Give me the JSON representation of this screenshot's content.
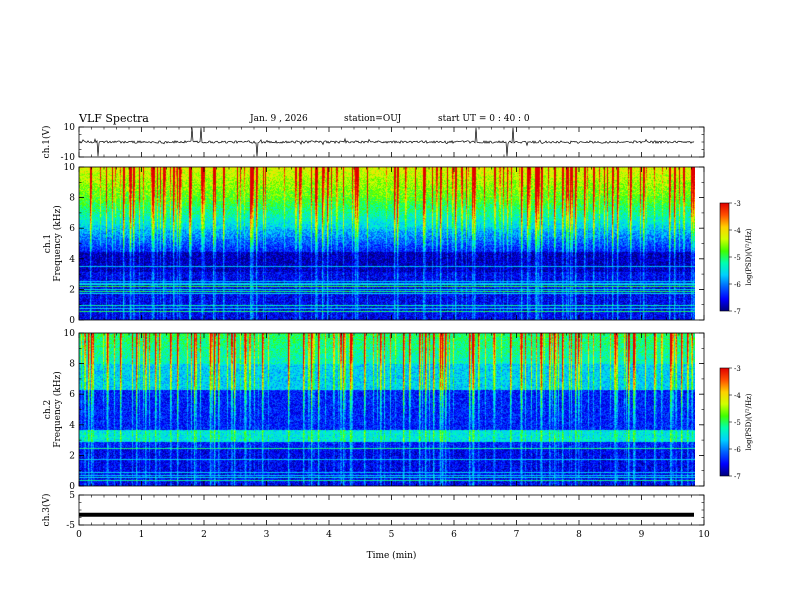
{
  "header": {
    "title": "VLF Spectra",
    "date": "Jan. 9 , 2026",
    "station": "station=OUJ",
    "start": "start UT = 0 : 40 : 0"
  },
  "colors": {
    "spectrum_scale": [
      "#00007a",
      "#0000ff",
      "#0060ff",
      "#00d0ff",
      "#00ffb0",
      "#40ff00",
      "#d0ff00",
      "#ffd000",
      "#ff5000",
      "#e00000",
      "#ffffff"
    ]
  },
  "chart_data": [
    {
      "type": "line",
      "panel": "ch.1(V)",
      "ylabel": "ch.1(V)",
      "ylim": [
        -10,
        10
      ],
      "y_ticks": [
        "10",
        "-10"
      ],
      "baseline": 0,
      "spikes_min": [
        0.3,
        1.8,
        1.95,
        2.85,
        6.35,
        6.85,
        6.95
      ]
    },
    {
      "type": "heatmap",
      "panel": "ch.1 spectrogram",
      "ylabel": "ch.1 Frequency (kHz)",
      "ylim": [
        0,
        10
      ],
      "y_ticks": [
        "0",
        "2",
        "4",
        "6",
        "8",
        "10"
      ],
      "colorbar": {
        "label": "log(PSD)(V²/Hz)",
        "range": [
          -7,
          -3
        ],
        "ticks": [
          "-3",
          "-4",
          "-5",
          "-6",
          "-7"
        ]
      }
    },
    {
      "type": "heatmap",
      "panel": "ch.2 spectrogram",
      "ylabel": "ch.2 Frequency (kHz)",
      "ylim": [
        0,
        10
      ],
      "y_ticks": [
        "0",
        "2",
        "4",
        "6",
        "8",
        "10"
      ],
      "colorbar": {
        "label": "log(PSD)(V²/Hz)",
        "range": [
          -7,
          -3
        ],
        "ticks": [
          "-3",
          "-4",
          "-5",
          "-6",
          "-7"
        ]
      }
    },
    {
      "type": "line",
      "panel": "ch.3(V)",
      "ylabel": "ch.3(V)",
      "ylim": [
        -5,
        5
      ],
      "y_ticks": [
        "5",
        "-5"
      ],
      "constant_value": -1.6
    }
  ],
  "xaxis": {
    "label": "Time (min)",
    "xlim": [
      0,
      10
    ],
    "ticks": [
      "0",
      "1",
      "2",
      "3",
      "4",
      "5",
      "6",
      "7",
      "8",
      "9",
      "10"
    ],
    "data_end_min": 9.85
  }
}
